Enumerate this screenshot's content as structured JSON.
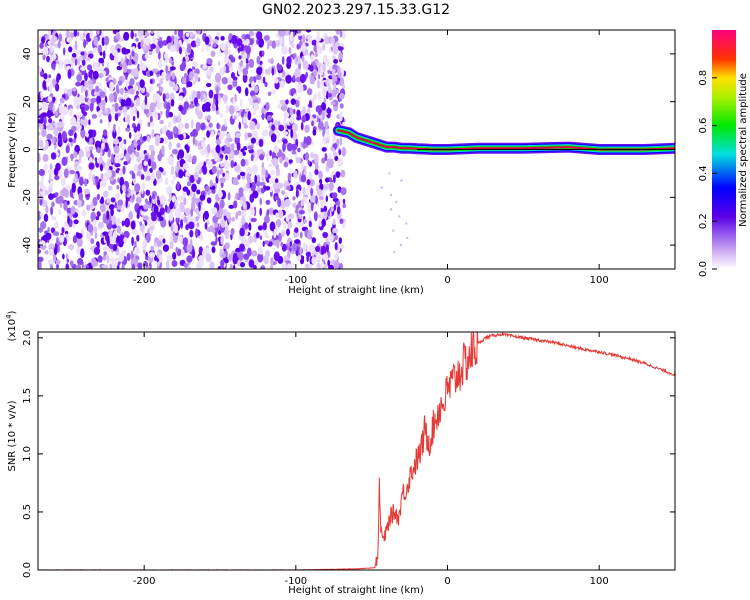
{
  "figure_title": "GN02.2023.297.15.33.G12",
  "colors": {
    "snr_line": "#e53935",
    "spectrum_dots": "#8a2be2",
    "track_center": "#e0004d"
  },
  "chart_data": [
    {
      "type": "heatmap",
      "xlabel": "Height of straight line (km)",
      "ylabel": "Frequency (Hz)",
      "xlim": [
        -270,
        150
      ],
      "ylim": [
        -50,
        50
      ],
      "xticks": [
        -200,
        -100,
        0,
        100
      ],
      "yticks": [
        -40,
        -20,
        0,
        20,
        40
      ],
      "colorbar": {
        "label": "Normalized spectral amplitude",
        "range": [
          0.0,
          1.0
        ],
        "ticks": [
          "0.0",
          "0.2",
          "0.4",
          "0.6",
          "0.8"
        ],
        "colormap": "rainbow (white-violet-blue-cyan-green-yellow-red-magenta)"
      },
      "noise_region": {
        "x_range": [
          -270,
          -68
        ],
        "y_range": [
          -50,
          50
        ],
        "description": "scattered low-amplitude violet speckle"
      },
      "signal_track": {
        "x": [
          -72,
          -65,
          -60,
          -55,
          -50,
          -45,
          -40,
          -35,
          -30,
          -25,
          -20,
          -15,
          -10,
          0,
          20,
          50,
          80,
          100,
          130,
          150
        ],
        "y": [
          8,
          7,
          5,
          4,
          3,
          2,
          1,
          1,
          0.5,
          0.5,
          0.3,
          0.2,
          0,
          0,
          0.5,
          0.5,
          1,
          0,
          0,
          0.5
        ]
      }
    },
    {
      "type": "line",
      "xlabel": "Height of straight line (km)",
      "ylabel": "SNR (10 * v/v)",
      "ylabel_scale": "(x10",
      "ylabel_scale_exp": "4",
      "ylabel_scale_close": ")",
      "xlim": [
        -270,
        150
      ],
      "ylim": [
        0,
        2.05
      ],
      "xticks": [
        -200,
        -100,
        0,
        100
      ],
      "yticks": [
        "0.0",
        "0.5",
        "1.0",
        "1.5",
        "2.0"
      ],
      "series": [
        {
          "x": [
            -270,
            -200,
            -100,
            -60,
            -48,
            -46,
            -45,
            -44,
            -42,
            -40,
            -38,
            -35,
            -32,
            -30,
            -27,
            -25,
            -22,
            -20,
            -17,
            -15,
            -12,
            -10,
            -8,
            -5,
            -2,
            0,
            5,
            10,
            15,
            20,
            25,
            30,
            35,
            40,
            50,
            60,
            70,
            80,
            90,
            100,
            110,
            120,
            130,
            140,
            150
          ],
          "y": [
            0.0,
            0.0,
            0.0,
            0.01,
            0.02,
            0.1,
            0.7,
            0.35,
            0.25,
            0.35,
            0.45,
            0.5,
            0.45,
            0.65,
            0.7,
            0.8,
            0.9,
            0.95,
            1.05,
            1.2,
            1.1,
            1.2,
            1.3,
            1.4,
            1.45,
            1.55,
            1.65,
            1.75,
            1.85,
            1.95,
            2.0,
            2.02,
            2.03,
            2.02,
            2.0,
            1.98,
            1.96,
            1.93,
            1.9,
            1.88,
            1.85,
            1.82,
            1.78,
            1.73,
            1.68
          ]
        }
      ]
    }
  ]
}
